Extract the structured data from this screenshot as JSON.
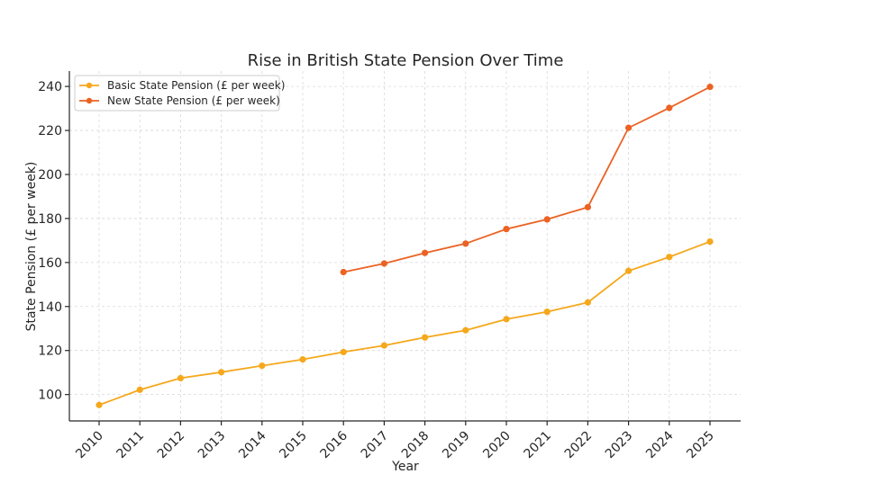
{
  "chart_data": {
    "type": "line",
    "title": "Rise in British State Pension Over Time",
    "xlabel": "Year",
    "ylabel": "State Pension (£ per week)",
    "x": [
      "2010",
      "2011",
      "2012",
      "2013",
      "2014",
      "2015",
      "2016",
      "2017",
      "2018",
      "2019",
      "2020",
      "2021",
      "2022",
      "2023",
      "2024",
      "2025"
    ],
    "ylim": [
      88,
      247
    ],
    "yticks": [
      100,
      120,
      140,
      160,
      180,
      200,
      220,
      240
    ],
    "grid": true,
    "legend_position": "top-left",
    "series": [
      {
        "name": "Basic State Pension (£ per week)",
        "color": "#f5a81c",
        "values": [
          95.25,
          102.15,
          107.45,
          110.15,
          113.1,
          115.95,
          119.3,
          122.3,
          125.95,
          129.2,
          134.25,
          137.6,
          141.85,
          156.2,
          162.5,
          169.5
        ]
      },
      {
        "name": "New State Pension (£ per week)",
        "color": "#eb6223",
        "values": [
          null,
          null,
          null,
          null,
          null,
          null,
          155.65,
          159.55,
          164.35,
          168.6,
          175.2,
          179.6,
          185.15,
          221.2,
          230.25,
          239.8
        ]
      }
    ]
  }
}
